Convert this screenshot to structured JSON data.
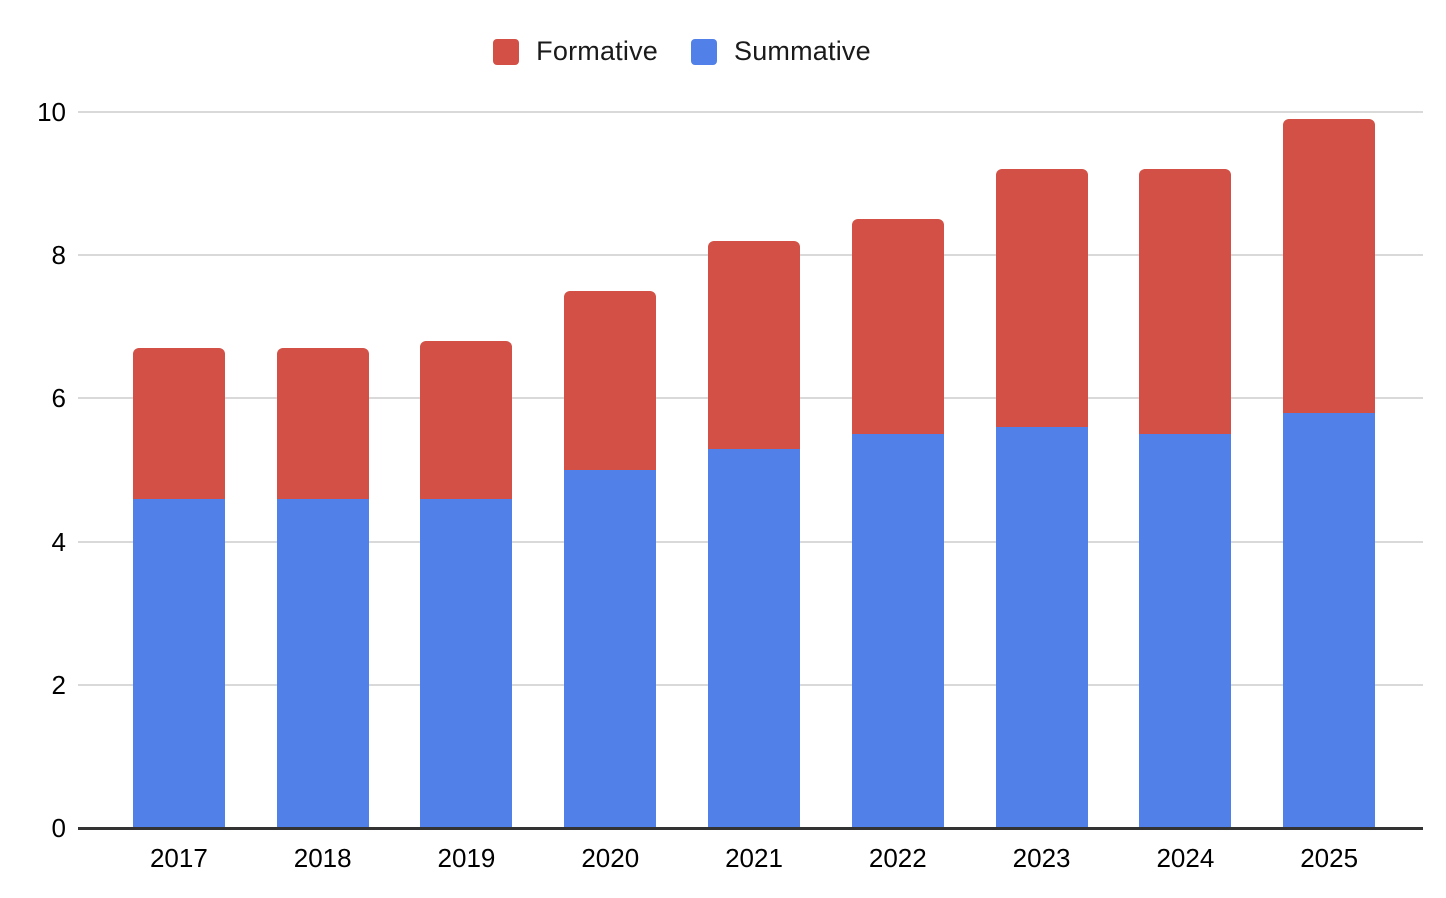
{
  "chart_data": {
    "type": "bar",
    "stacked": true,
    "title": "",
    "categories": [
      "2017",
      "2018",
      "2019",
      "2020",
      "2021",
      "2022",
      "2023",
      "2024",
      "2025"
    ],
    "series": [
      {
        "name": "Formative",
        "color": "#D25045",
        "values": [
          2.1,
          2.1,
          2.2,
          2.5,
          2.9,
          3.0,
          3.6,
          3.7,
          4.1
        ]
      },
      {
        "name": "Summative",
        "color": "#5181E8",
        "values": [
          4.6,
          4.6,
          4.6,
          5.0,
          5.3,
          5.5,
          5.6,
          5.5,
          5.8
        ]
      }
    ],
    "stack_order_bottom_to_top": [
      "Summative",
      "Formative"
    ],
    "stack_totals": [
      6.7,
      6.7,
      6.8,
      7.5,
      8.2,
      8.5,
      9.2,
      9.2,
      9.9
    ],
    "xlabel": "",
    "ylabel": "",
    "ylim": [
      0,
      10
    ],
    "yticks": [
      0,
      2,
      4,
      6,
      8,
      10
    ],
    "grid": true,
    "legend_position": "top",
    "colors": {
      "gridline": "#D9D9D9",
      "axis_line": "#333333",
      "text": "#000000",
      "background": "#FFFFFF"
    }
  }
}
